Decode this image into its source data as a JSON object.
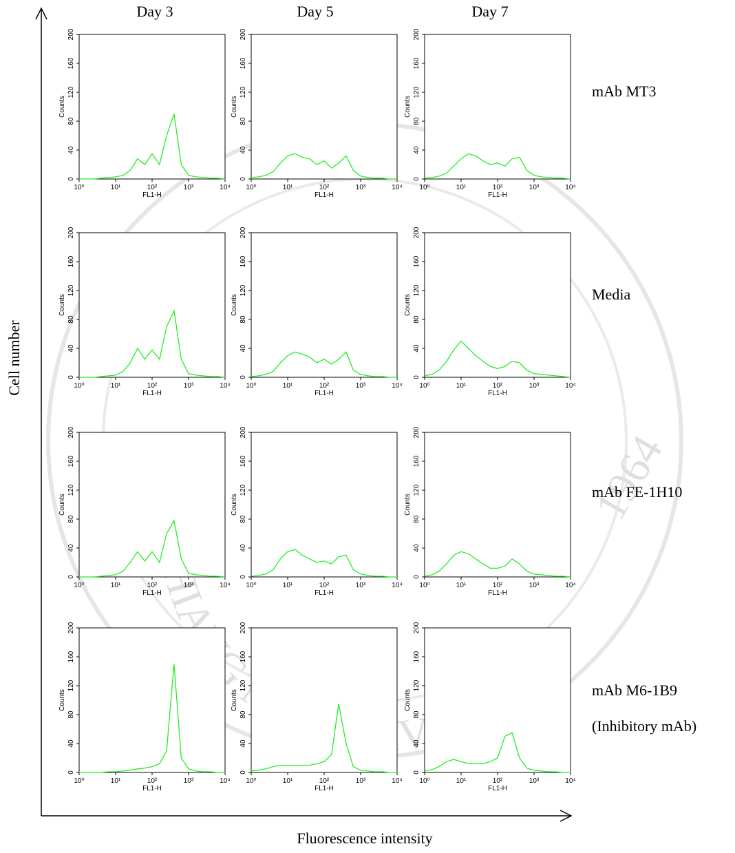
{
  "figure": {
    "column_titles": [
      "Day 3",
      "Day 5",
      "Day 7"
    ],
    "row_labels": [
      "mAb MT3",
      "Media",
      "mAb FE-1H10",
      "mAb M6-1B9",
      "(Inhibitory mAb)"
    ],
    "y_label": "Cell number",
    "x_label": "Fluorescence intensity",
    "watermark": [
      "CHIANG MAI UNIVERSITY",
      "1964"
    ]
  },
  "chart_data": [
    {
      "type": "line",
      "log_x": true,
      "xlabel": "FL1-H",
      "ylabel": "Counts",
      "xlim": [
        1,
        10000
      ],
      "ylim": [
        0,
        200
      ],
      "xticks": [
        {
          "value": 1,
          "label": "10⁰"
        },
        {
          "value": 10,
          "label": "10¹"
        },
        {
          "value": 100,
          "label": "10²"
        },
        {
          "value": 1000,
          "label": "10³"
        },
        {
          "value": 10000,
          "label": "10⁴"
        }
      ],
      "yticks": [
        0,
        40,
        80,
        120,
        160,
        200
      ],
      "x": [
        1,
        1.6,
        2.5,
        4,
        6.3,
        10,
        16,
        25,
        40,
        63,
        100,
        160,
        250,
        400,
        630,
        1000,
        1600,
        2500,
        4000,
        6300,
        10000
      ],
      "series": [
        {
          "color": "#22ee22",
          "values": [
            0,
            0,
            0,
            1,
            2,
            3,
            5,
            12,
            28,
            20,
            35,
            20,
            60,
            90,
            20,
            5,
            3,
            2,
            1,
            1,
            0
          ]
        }
      ]
    },
    {
      "type": "line",
      "log_x": true,
      "xlabel": "FL1-H",
      "ylabel": "Counts",
      "xlim": [
        1,
        10000
      ],
      "ylim": [
        0,
        200
      ],
      "xticks": [
        {
          "value": 1,
          "label": "10⁰"
        },
        {
          "value": 10,
          "label": "10¹"
        },
        {
          "value": 100,
          "label": "10²"
        },
        {
          "value": 1000,
          "label": "10³"
        },
        {
          "value": 10000,
          "label": "10⁴"
        }
      ],
      "yticks": [
        0,
        40,
        80,
        120,
        160,
        200
      ],
      "x": [
        1,
        1.6,
        2.5,
        4,
        6.3,
        10,
        16,
        25,
        40,
        63,
        100,
        160,
        250,
        400,
        630,
        1000,
        1600,
        2500,
        4000,
        6300,
        10000
      ],
      "series": [
        {
          "color": "#22ee22",
          "values": [
            2,
            3,
            5,
            10,
            22,
            32,
            35,
            30,
            28,
            20,
            25,
            15,
            22,
            32,
            12,
            4,
            2,
            1,
            1,
            0,
            0
          ]
        }
      ]
    },
    {
      "type": "line",
      "log_x": true,
      "xlabel": "FL1-H",
      "ylabel": "Counts",
      "xlim": [
        1,
        10000
      ],
      "ylim": [
        0,
        200
      ],
      "xticks": [
        {
          "value": 1,
          "label": "10⁰"
        },
        {
          "value": 10,
          "label": "10¹"
        },
        {
          "value": 100,
          "label": "10²"
        },
        {
          "value": 1000,
          "label": "10³"
        },
        {
          "value": 10000,
          "label": "10⁴"
        }
      ],
      "yticks": [
        0,
        40,
        80,
        120,
        160,
        200
      ],
      "x": [
        1,
        1.6,
        2.5,
        4,
        6.3,
        10,
        16,
        25,
        40,
        63,
        100,
        160,
        250,
        400,
        630,
        1000,
        1600,
        2500,
        4000,
        6300,
        10000
      ],
      "series": [
        {
          "color": "#22ee22",
          "values": [
            1,
            2,
            4,
            8,
            18,
            28,
            35,
            32,
            25,
            20,
            22,
            18,
            28,
            30,
            12,
            5,
            3,
            2,
            1,
            1,
            0
          ]
        }
      ]
    },
    {
      "type": "line",
      "log_x": true,
      "xlabel": "FL1-H",
      "ylabel": "Counts",
      "xlim": [
        1,
        10000
      ],
      "ylim": [
        0,
        200
      ],
      "xticks": [
        {
          "value": 1,
          "label": "10⁰"
        },
        {
          "value": 10,
          "label": "10¹"
        },
        {
          "value": 100,
          "label": "10²"
        },
        {
          "value": 1000,
          "label": "10³"
        },
        {
          "value": 10000,
          "label": "10⁴"
        }
      ],
      "yticks": [
        0,
        40,
        80,
        120,
        160,
        200
      ],
      "x": [
        1,
        1.6,
        2.5,
        4,
        6.3,
        10,
        16,
        25,
        40,
        63,
        100,
        160,
        250,
        400,
        630,
        1000,
        1600,
        2500,
        4000,
        6300,
        10000
      ],
      "series": [
        {
          "color": "#22ee22",
          "values": [
            0,
            0,
            0,
            1,
            2,
            3,
            8,
            20,
            40,
            25,
            38,
            25,
            70,
            92,
            25,
            5,
            3,
            2,
            1,
            1,
            0
          ]
        }
      ]
    },
    {
      "type": "line",
      "log_x": true,
      "xlabel": "FL1-H",
      "ylabel": "Counts",
      "xlim": [
        1,
        10000
      ],
      "ylim": [
        0,
        200
      ],
      "xticks": [
        {
          "value": 1,
          "label": "10⁰"
        },
        {
          "value": 10,
          "label": "10¹"
        },
        {
          "value": 100,
          "label": "10²"
        },
        {
          "value": 1000,
          "label": "10³"
        },
        {
          "value": 10000,
          "label": "10⁴"
        }
      ],
      "yticks": [
        0,
        40,
        80,
        120,
        160,
        200
      ],
      "x": [
        1,
        1.6,
        2.5,
        4,
        6.3,
        10,
        16,
        25,
        40,
        63,
        100,
        160,
        250,
        400,
        630,
        1000,
        1600,
        2500,
        4000,
        6300,
        10000
      ],
      "series": [
        {
          "color": "#22ee22",
          "values": [
            1,
            2,
            4,
            8,
            20,
            30,
            35,
            32,
            28,
            20,
            25,
            18,
            25,
            35,
            10,
            4,
            2,
            1,
            1,
            0,
            0
          ]
        }
      ]
    },
    {
      "type": "line",
      "log_x": true,
      "xlabel": "FL1-H",
      "ylabel": "Counts",
      "xlim": [
        1,
        10000
      ],
      "ylim": [
        0,
        200
      ],
      "xticks": [
        {
          "value": 1,
          "label": "10⁰"
        },
        {
          "value": 10,
          "label": "10¹"
        },
        {
          "value": 100,
          "label": "10²"
        },
        {
          "value": 1000,
          "label": "10³"
        },
        {
          "value": 10000,
          "label": "10⁴"
        }
      ],
      "yticks": [
        0,
        40,
        80,
        120,
        160,
        200
      ],
      "x": [
        1,
        1.6,
        2.5,
        4,
        6.3,
        10,
        16,
        25,
        40,
        63,
        100,
        160,
        250,
        400,
        630,
        1000,
        1600,
        2500,
        4000,
        6300,
        10000
      ],
      "series": [
        {
          "color": "#22ee22",
          "values": [
            2,
            4,
            10,
            22,
            38,
            50,
            40,
            30,
            22,
            15,
            12,
            15,
            22,
            20,
            10,
            5,
            4,
            3,
            2,
            1,
            0
          ]
        }
      ]
    },
    {
      "type": "line",
      "log_x": true,
      "xlabel": "FL1-H",
      "ylabel": "Counts",
      "xlim": [
        1,
        10000
      ],
      "ylim": [
        0,
        200
      ],
      "xticks": [
        {
          "value": 1,
          "label": "10⁰"
        },
        {
          "value": 10,
          "label": "10¹"
        },
        {
          "value": 100,
          "label": "10²"
        },
        {
          "value": 1000,
          "label": "10³"
        },
        {
          "value": 10000,
          "label": "10⁴"
        }
      ],
      "yticks": [
        0,
        40,
        80,
        120,
        160,
        200
      ],
      "x": [
        1,
        1.6,
        2.5,
        4,
        6.3,
        10,
        16,
        25,
        40,
        63,
        100,
        160,
        250,
        400,
        630,
        1000,
        1600,
        2500,
        4000,
        6300,
        10000
      ],
      "series": [
        {
          "color": "#22ee22",
          "values": [
            0,
            0,
            0,
            1,
            2,
            3,
            8,
            20,
            35,
            22,
            35,
            20,
            60,
            78,
            25,
            5,
            3,
            2,
            1,
            1,
            0
          ]
        }
      ]
    },
    {
      "type": "line",
      "log_x": true,
      "xlabel": "FL1-H",
      "ylabel": "Counts",
      "xlim": [
        1,
        10000
      ],
      "ylim": [
        0,
        200
      ],
      "xticks": [
        {
          "value": 1,
          "label": "10⁰"
        },
        {
          "value": 10,
          "label": "10¹"
        },
        {
          "value": 100,
          "label": "10²"
        },
        {
          "value": 1000,
          "label": "10³"
        },
        {
          "value": 10000,
          "label": "10⁴"
        }
      ],
      "yticks": [
        0,
        40,
        80,
        120,
        160,
        200
      ],
      "x": [
        1,
        1.6,
        2.5,
        4,
        6.3,
        10,
        16,
        25,
        40,
        63,
        100,
        160,
        250,
        400,
        630,
        1000,
        1600,
        2500,
        4000,
        6300,
        10000
      ],
      "series": [
        {
          "color": "#22ee22",
          "values": [
            1,
            2,
            4,
            10,
            25,
            35,
            38,
            30,
            25,
            20,
            22,
            18,
            28,
            30,
            10,
            4,
            2,
            1,
            1,
            0,
            0
          ]
        }
      ]
    },
    {
      "type": "line",
      "log_x": true,
      "xlabel": "FL1-H",
      "ylabel": "Counts",
      "xlim": [
        1,
        10000
      ],
      "ylim": [
        0,
        200
      ],
      "xticks": [
        {
          "value": 1,
          "label": "10⁰"
        },
        {
          "value": 10,
          "label": "10¹"
        },
        {
          "value": 100,
          "label": "10²"
        },
        {
          "value": 1000,
          "label": "10³"
        },
        {
          "value": 10000,
          "label": "10⁴"
        }
      ],
      "yticks": [
        0,
        40,
        80,
        120,
        160,
        200
      ],
      "x": [
        1,
        1.6,
        2.5,
        4,
        6.3,
        10,
        16,
        25,
        40,
        63,
        100,
        160,
        250,
        400,
        630,
        1000,
        1600,
        2500,
        4000,
        6300,
        10000
      ],
      "series": [
        {
          "color": "#22ee22",
          "values": [
            1,
            3,
            8,
            18,
            30,
            35,
            32,
            25,
            18,
            12,
            12,
            15,
            25,
            18,
            8,
            4,
            3,
            2,
            1,
            1,
            0
          ]
        }
      ]
    },
    {
      "type": "line",
      "log_x": true,
      "xlabel": "FL1-H",
      "ylabel": "Counts",
      "xlim": [
        1,
        10000
      ],
      "ylim": [
        0,
        200
      ],
      "xticks": [
        {
          "value": 1,
          "label": "10⁰"
        },
        {
          "value": 10,
          "label": "10¹"
        },
        {
          "value": 100,
          "label": "10²"
        },
        {
          "value": 1000,
          "label": "10³"
        },
        {
          "value": 10000,
          "label": "10⁴"
        }
      ],
      "yticks": [
        0,
        40,
        80,
        120,
        160,
        200
      ],
      "x": [
        1,
        1.6,
        2.5,
        4,
        6.3,
        10,
        16,
        25,
        40,
        63,
        100,
        160,
        250,
        400,
        630,
        1000,
        1600,
        2500,
        4000,
        6300,
        10000
      ],
      "series": [
        {
          "color": "#22ee22",
          "values": [
            0,
            0,
            0,
            0,
            1,
            1,
            2,
            3,
            5,
            6,
            8,
            12,
            30,
            150,
            20,
            5,
            2,
            1,
            1,
            0,
            0
          ]
        }
      ]
    },
    {
      "type": "line",
      "log_x": true,
      "xlabel": "FL1-H",
      "ylabel": "Counts",
      "xlim": [
        1,
        10000
      ],
      "ylim": [
        0,
        200
      ],
      "xticks": [
        {
          "value": 1,
          "label": "10⁰"
        },
        {
          "value": 10,
          "label": "10¹"
        },
        {
          "value": 100,
          "label": "10²"
        },
        {
          "value": 1000,
          "label": "10³"
        },
        {
          "value": 10000,
          "label": "10⁴"
        }
      ],
      "yticks": [
        0,
        40,
        80,
        120,
        160,
        200
      ],
      "x": [
        1,
        1.6,
        2.5,
        4,
        6.3,
        10,
        16,
        25,
        40,
        63,
        100,
        160,
        250,
        400,
        630,
        1000,
        1600,
        2500,
        4000,
        6300,
        10000
      ],
      "series": [
        {
          "color": "#22ee22",
          "values": [
            2,
            3,
            5,
            8,
            10,
            10,
            10,
            10,
            10,
            12,
            15,
            25,
            95,
            40,
            8,
            3,
            2,
            1,
            1,
            0,
            0
          ]
        }
      ]
    },
    {
      "type": "line",
      "log_x": true,
      "xlabel": "FL1-H",
      "ylabel": "Counts",
      "xlim": [
        1,
        10000
      ],
      "ylim": [
        0,
        200
      ],
      "xticks": [
        {
          "value": 1,
          "label": "10⁰"
        },
        {
          "value": 10,
          "label": "10¹"
        },
        {
          "value": 100,
          "label": "10²"
        },
        {
          "value": 1000,
          "label": "10³"
        },
        {
          "value": 10000,
          "label": "10⁴"
        }
      ],
      "yticks": [
        0,
        40,
        80,
        120,
        160,
        200
      ],
      "x": [
        1,
        1.6,
        2.5,
        4,
        6.3,
        10,
        16,
        25,
        40,
        63,
        100,
        160,
        250,
        400,
        630,
        1000,
        1600,
        2500,
        4000,
        6300,
        10000
      ],
      "series": [
        {
          "color": "#22ee22",
          "values": [
            2,
            4,
            8,
            15,
            18,
            15,
            12,
            12,
            12,
            15,
            20,
            50,
            55,
            20,
            6,
            3,
            2,
            1,
            1,
            0,
            0
          ]
        }
      ]
    }
  ]
}
